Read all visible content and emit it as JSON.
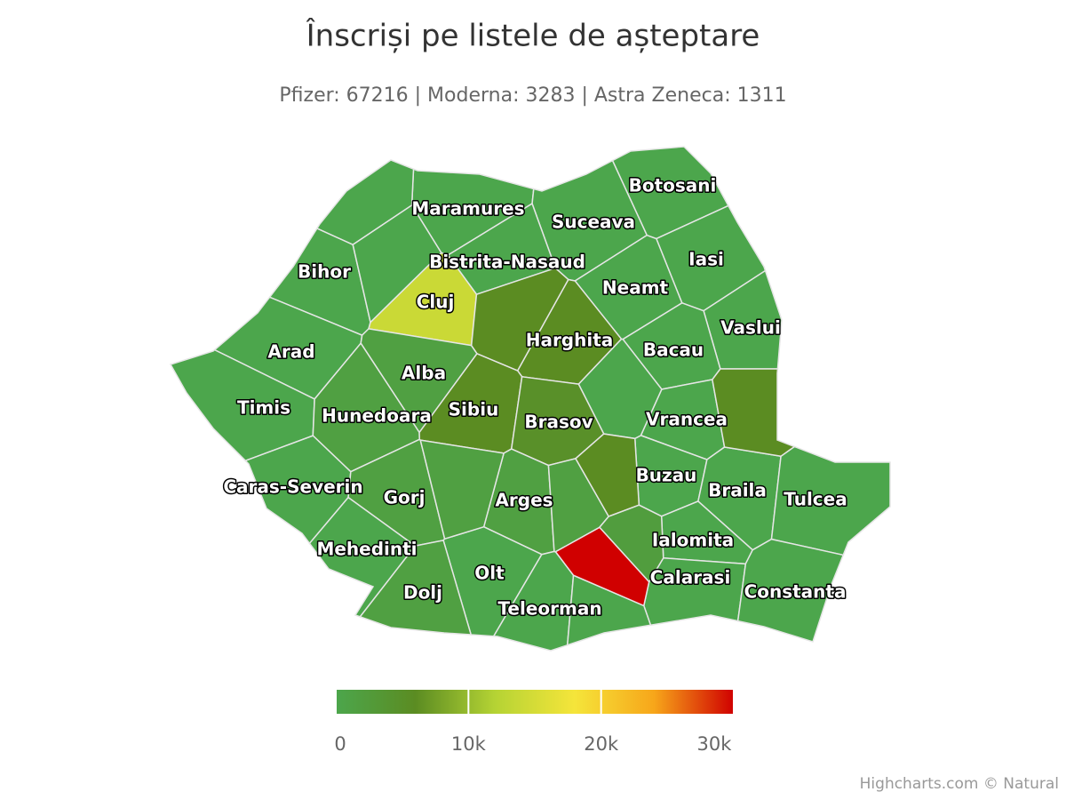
{
  "chart_data": {
    "type": "choropleth",
    "title": "Înscriși pe listele de așteptare",
    "subtitle": "Pfizer: 67216 | Moderna: 3283 | Astra Zeneca: 1311",
    "regions": [
      {
        "name": "Maramures",
        "value": 0
      },
      {
        "name": "Botosani",
        "value": 0
      },
      {
        "name": "Suceava",
        "value": 0
      },
      {
        "name": "Bihor",
        "value": 0
      },
      {
        "name": "Bistrita-Nasaud",
        "value": 0
      },
      {
        "name": "Iasi",
        "value": 0
      },
      {
        "name": "Neamt",
        "value": 0
      },
      {
        "name": "Cluj",
        "value": 14000
      },
      {
        "name": "Harghita",
        "value": 6000
      },
      {
        "name": "Vaslui",
        "value": 0
      },
      {
        "name": "Arad",
        "value": 0
      },
      {
        "name": "Bacau",
        "value": 0
      },
      {
        "name": "Alba",
        "value": 1500
      },
      {
        "name": "Timis",
        "value": 0
      },
      {
        "name": "Hunedoara",
        "value": 1500
      },
      {
        "name": "Sibiu",
        "value": 6000
      },
      {
        "name": "Brasov",
        "value": 5000
      },
      {
        "name": "Vrancea",
        "value": 0
      },
      {
        "name": "Caras-Severin",
        "value": 0
      },
      {
        "name": "Gorj",
        "value": 1500
      },
      {
        "name": "Arges",
        "value": 1500
      },
      {
        "name": "Buzau",
        "value": 0
      },
      {
        "name": "Braila",
        "value": 0
      },
      {
        "name": "Tulcea",
        "value": 0
      },
      {
        "name": "Mehedinti",
        "value": 0
      },
      {
        "name": "Ialomita",
        "value": 0
      },
      {
        "name": "Olt",
        "value": 0
      },
      {
        "name": "Calarasi",
        "value": 0
      },
      {
        "name": "Constanta",
        "value": 0
      },
      {
        "name": "Dolj",
        "value": 1500
      },
      {
        "name": "Teleorman",
        "value": 0
      },
      {
        "name": null,
        "value": 0
      },
      {
        "name": null,
        "value": 0
      },
      {
        "name": null,
        "value": 6000
      },
      {
        "name": null,
        "value": 0
      },
      {
        "name": null,
        "value": 6000
      },
      {
        "name": null,
        "value": 1500
      },
      {
        "name": null,
        "value": 1500
      },
      {
        "name": null,
        "value": 6000
      },
      {
        "name": null,
        "value": 0
      },
      {
        "name": null,
        "value": 2000
      },
      {
        "name": null,
        "value": 30000
      }
    ],
    "colorlim": [
      0,
      30000
    ],
    "color_stops": [
      "#4ca64c",
      "#5b8c22",
      "#b5d334",
      "#f5e53a",
      "#f7a61a",
      "#d00000"
    ],
    "colorticks": [
      0,
      {
        "value": 10000,
        "label": "10k"
      },
      {
        "value": 20000,
        "label": "20k"
      },
      {
        "value": 30000,
        "label": "30k"
      }
    ],
    "credits": "Highcharts.com © Natural"
  }
}
